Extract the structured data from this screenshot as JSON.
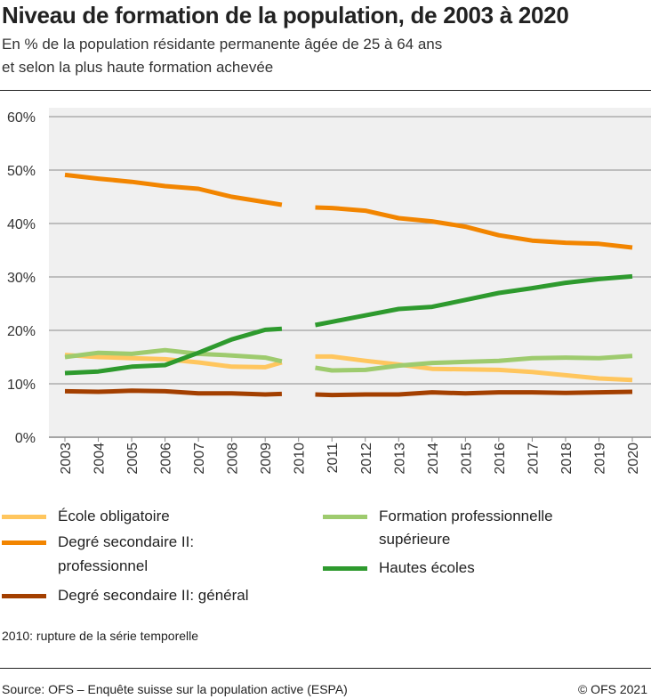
{
  "title": "Niveau de formation de la population, de 2003 à 2020",
  "subtitle": [
    "En % de la population résidante permanente âgée de 25 à 64 ans",
    "et selon la plus haute formation achevée"
  ],
  "note": "2010: rupture de la série temporelle",
  "source": "Source: OFS – Enquête suisse sur la population active (ESPA)",
  "copyright": "© OFS 2021",
  "chart_data": {
    "type": "line",
    "ylim": [
      0,
      60
    ],
    "yticks": [
      "0%",
      "10%",
      "20%",
      "30%",
      "40%",
      "50%",
      "60%"
    ],
    "xticks": [
      "2003",
      "2004",
      "2005",
      "2006",
      "2007",
      "2008",
      "2009",
      "2010",
      "2011",
      "2012",
      "2013",
      "2014",
      "2015",
      "2016",
      "2017",
      "2018",
      "2019",
      "2020"
    ],
    "grid": true,
    "legend": "bottom",
    "segments_x": [
      [
        2003,
        2004,
        2005,
        2006,
        2007,
        2008,
        2009,
        2009.5
      ],
      [
        2010.5,
        2011,
        2012,
        2013,
        2014,
        2015,
        2016,
        2017,
        2018,
        2019,
        2020
      ]
    ],
    "series": [
      {
        "name": "École obligatoire",
        "color": "#ffc65e",
        "values": [
          [
            15.4,
            15.0,
            14.8,
            14.6,
            14.0,
            13.2,
            13.1,
            14.0
          ],
          [
            15.1,
            15.1,
            14.3,
            13.6,
            12.8,
            12.7,
            12.6,
            12.2,
            11.6,
            11.0,
            10.7
          ]
        ]
      },
      {
        "name": "Degré secondaire II: professionnel",
        "color": "#f28500",
        "values": [
          [
            49.1,
            48.4,
            47.8,
            47.0,
            46.5,
            45.0,
            44.0,
            43.5
          ],
          [
            43.0,
            42.9,
            42.4,
            41.0,
            40.4,
            39.4,
            37.8,
            36.8,
            36.4,
            36.2,
            35.5
          ]
        ]
      },
      {
        "name": "Degré secondaire II: général",
        "color": "#a33f00",
        "values": [
          [
            8.6,
            8.5,
            8.7,
            8.6,
            8.2,
            8.2,
            8.0,
            8.1
          ],
          [
            8.0,
            7.9,
            8.0,
            8.0,
            8.4,
            8.2,
            8.4,
            8.4,
            8.3,
            8.4,
            8.5
          ]
        ]
      },
      {
        "name": "Formation professionnelle supérieure",
        "color": "#9ecb6e",
        "values": [
          [
            15.0,
            15.8,
            15.6,
            16.3,
            15.6,
            15.3,
            14.9,
            14.2
          ],
          [
            13.0,
            12.5,
            12.6,
            13.4,
            13.9,
            14.1,
            14.3,
            14.8,
            14.9,
            14.8,
            15.2
          ]
        ]
      },
      {
        "name": "Hautes écoles",
        "color": "#2e9a2e",
        "values": [
          [
            12.0,
            12.3,
            13.2,
            13.5,
            15.8,
            18.3,
            20.1,
            20.3
          ],
          [
            21.0,
            21.6,
            22.8,
            24.0,
            24.4,
            25.7,
            27.0,
            27.9,
            28.9,
            29.6,
            30.1
          ]
        ]
      }
    ]
  },
  "legend": {
    "items": [
      {
        "lines": [
          "École obligatoire"
        ]
      },
      {
        "lines": [
          "Degré secondaire II:",
          "professionnel"
        ]
      },
      {
        "lines": [
          "Degré secondaire II: général"
        ]
      },
      {
        "lines": [
          "Formation professionnelle",
          "supérieure"
        ]
      },
      {
        "lines": [
          "Hautes écoles"
        ]
      }
    ]
  }
}
